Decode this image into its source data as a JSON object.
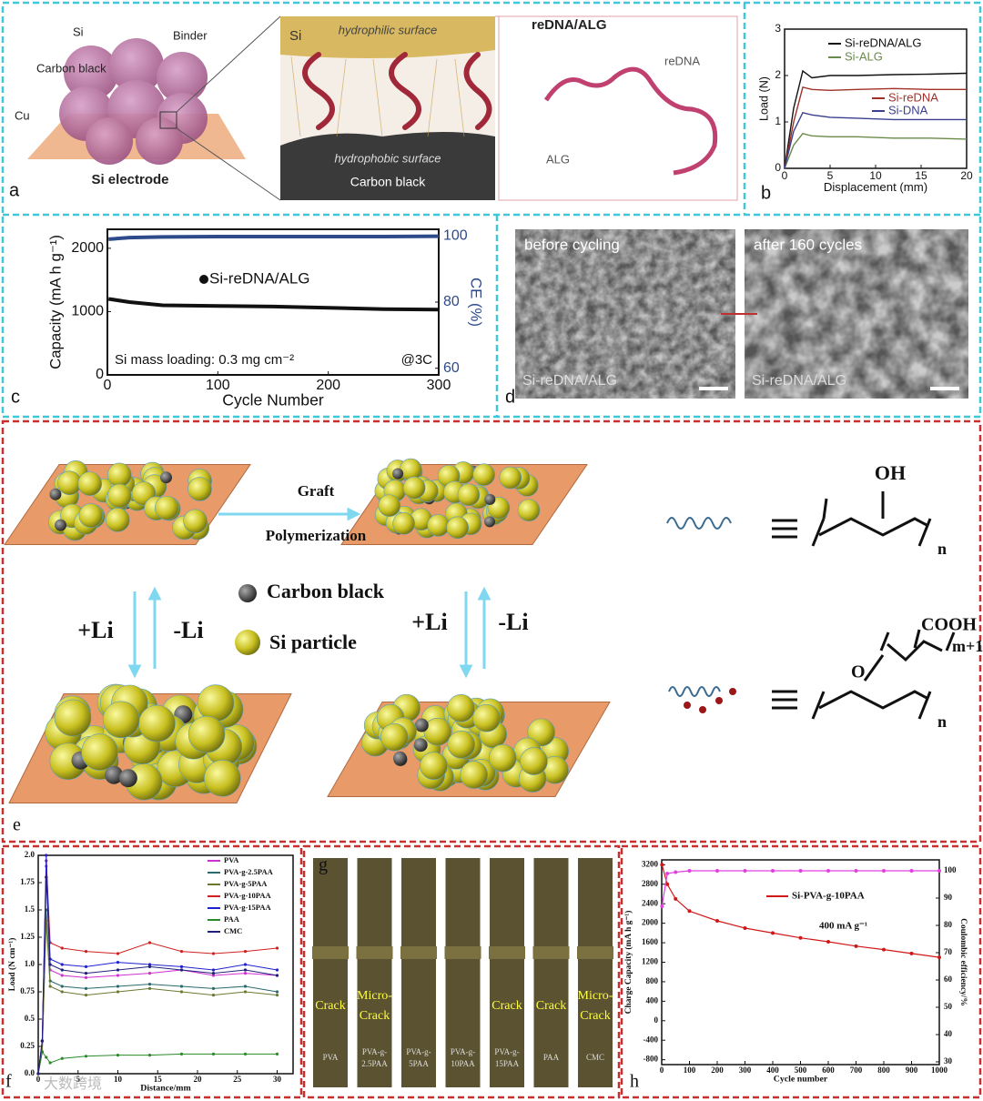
{
  "figure": {
    "panel_labels": [
      "a",
      "b",
      "c",
      "d",
      "e",
      "f",
      "g",
      "h"
    ],
    "a": {
      "labels": [
        "Si",
        "Binder",
        "Carbon black",
        "Cu",
        "Si electrode"
      ],
      "inset_labels": [
        "Si",
        "hydrophilic surface",
        "hydrophobic surface",
        "Carbon black"
      ],
      "model_title": "reDNA/ALG",
      "model_labels": [
        "reDNA",
        "ALG"
      ]
    },
    "d": {
      "titles": [
        "before cycling",
        "after 160 cycles"
      ],
      "captions": [
        "Si-reDNA/ALG",
        "Si-reDNA/ALG"
      ]
    },
    "e": {
      "arrow_labels": [
        "Graft",
        "Polymerization"
      ],
      "legend": [
        "Carbon black",
        "Si particle"
      ],
      "cycle_labels": [
        "+Li",
        "-Li",
        "+Li",
        "-Li"
      ],
      "formula1": {
        "group": "OH",
        "subscript": "n"
      },
      "formula2": {
        "group": "COOH",
        "link": "O",
        "graft_subscript": "m+1",
        "subscript": "n"
      }
    },
    "g": {
      "strips": [
        {
          "label": [
            "PVA"
          ],
          "note": [
            "Crack"
          ]
        },
        {
          "label": [
            "PVA-g-",
            "2.5PAA"
          ],
          "note": [
            "Micro-",
            "Crack"
          ]
        },
        {
          "label": [
            "PVA-g-",
            "5PAA"
          ]
        },
        {
          "label": [
            "PVA-g-",
            "10PAA"
          ]
        },
        {
          "label": [
            "PVA-g-",
            "15PAA"
          ],
          "note": [
            "Crack"
          ]
        },
        {
          "label": [
            "PAA"
          ],
          "note": [
            "Crack"
          ]
        },
        {
          "label": [
            "CMC"
          ],
          "note": [
            "Micro-",
            "Crack"
          ]
        }
      ]
    },
    "watermark": "大数跨境"
  },
  "chart_data": [
    {
      "type": "line",
      "xlabel": "Displacement (mm)",
      "ylabel": "Load (N)",
      "x": [
        0,
        1,
        2,
        3,
        5,
        8,
        12,
        16,
        20
      ],
      "xlim": [
        0,
        20
      ],
      "ylim": [
        0,
        3
      ],
      "xticks": [
        0,
        5,
        10,
        15,
        20
      ],
      "yticks": [
        0,
        1,
        2,
        3
      ],
      "series": [
        {
          "name": "Si-reDNA/ALG",
          "color": "#111111",
          "values": [
            0,
            1.3,
            2.1,
            1.95,
            2.0,
            2.0,
            2.02,
            2.03,
            2.05
          ]
        },
        {
          "name": "Si-ALG",
          "color": "#6a8a4a",
          "values": [
            0,
            0.5,
            0.75,
            0.7,
            0.68,
            0.68,
            0.65,
            0.65,
            0.63
          ]
        },
        {
          "name": "Si-reDNA",
          "color": "#a03028",
          "values": [
            0,
            1.0,
            1.75,
            1.7,
            1.68,
            1.7,
            1.72,
            1.7,
            1.7
          ]
        },
        {
          "name": "Si-DNA",
          "color": "#3a3f8f",
          "values": [
            0,
            0.8,
            1.2,
            1.15,
            1.1,
            1.08,
            1.05,
            1.05,
            1.05
          ]
        }
      ]
    },
    {
      "type": "line",
      "xlabel": "Cycle Number",
      "ylabel": "Capacity (mA h g⁻¹)",
      "y2label": "CE (%)",
      "x": [
        1,
        20,
        50,
        100,
        150,
        200,
        250,
        300
      ],
      "xlim": [
        0,
        300
      ],
      "ylim": [
        0,
        2300
      ],
      "y2lim": [
        58,
        102
      ],
      "xticks": [
        0,
        100,
        200,
        300
      ],
      "yticks": [
        0,
        1000,
        2000
      ],
      "y2ticks": [
        60,
        80,
        100
      ],
      "annotations": [
        "Si mass loading: 0.3 mg cm⁻²",
        "@3C"
      ],
      "series": [
        {
          "name": "Si-reDNA/ALG",
          "color": "#111111",
          "values": [
            1200,
            1150,
            1100,
            1090,
            1080,
            1060,
            1040,
            1030
          ]
        },
        {
          "color": "#2d4a8a",
          "axis": "y2",
          "values": [
            99,
            99.5,
            99.7,
            99.8,
            99.8,
            99.8,
            99.8,
            99.9
          ]
        }
      ]
    },
    {
      "type": "line",
      "xlabel": "Distance/mm",
      "ylabel": "Load (N cm⁻¹)",
      "x": [
        0,
        0.5,
        1,
        1.5,
        3,
        6,
        10,
        14,
        18,
        22,
        26,
        30
      ],
      "xlim": [
        0,
        32
      ],
      "ylim": [
        0,
        2
      ],
      "xticks": [
        0,
        5,
        10,
        15,
        20,
        25,
        30
      ],
      "yticks": [
        {
          "value": 0,
          "label": "0.0"
        },
        0.25,
        {
          "value": 0.5,
          "label": "0.5"
        },
        0.75,
        {
          "value": 1,
          "label": "1.0"
        },
        1.25,
        {
          "value": 1.5,
          "label": "1.5"
        },
        1.75,
        {
          "value": 2,
          "label": "2.0"
        }
      ],
      "series": [
        {
          "name": "PVA",
          "color": "#d030d0",
          "values": [
            0,
            0.3,
            1.9,
            0.95,
            0.9,
            0.88,
            0.9,
            0.92,
            0.95,
            0.9,
            0.92,
            0.9
          ]
        },
        {
          "name": "PVA-g-2.5PAA",
          "color": "#2a6a6a",
          "values": [
            0,
            0.2,
            1.5,
            0.85,
            0.8,
            0.78,
            0.8,
            0.82,
            0.8,
            0.78,
            0.8,
            0.75
          ]
        },
        {
          "name": "PVA-g-5PAA",
          "color": "#6a7a30",
          "values": [
            0,
            0.2,
            1.4,
            0.8,
            0.75,
            0.72,
            0.75,
            0.78,
            0.75,
            0.72,
            0.75,
            0.72
          ]
        },
        {
          "name": "PVA-g-10PAA",
          "color": "#d02020",
          "values": [
            0,
            0.3,
            1.95,
            1.2,
            1.15,
            1.12,
            1.1,
            1.2,
            1.12,
            1.1,
            1.12,
            1.15
          ]
        },
        {
          "name": "PVA-g-15PAA",
          "color": "#2020d0",
          "values": [
            0,
            0.3,
            2.0,
            1.05,
            1.0,
            0.98,
            1.02,
            1.0,
            0.98,
            0.95,
            1.0,
            0.95
          ]
        },
        {
          "name": "PAA",
          "color": "#2a8a2a",
          "values": [
            0,
            0.2,
            0.15,
            0.1,
            0.14,
            0.16,
            0.17,
            0.17,
            0.18,
            0.18,
            0.18,
            0.18
          ]
        },
        {
          "name": "CMC",
          "color": "#20207a",
          "values": [
            0,
            0.3,
            1.8,
            1.0,
            0.95,
            0.92,
            0.95,
            0.98,
            0.95,
            0.92,
            0.95,
            0.9
          ]
        }
      ]
    },
    {
      "type": "line",
      "xlabel": "Cycle number",
      "ylabel": "Charge Capacity  (mA h g⁻¹)",
      "y2label": "Coulombic efficiency/%",
      "x": [
        1,
        20,
        50,
        100,
        200,
        300,
        400,
        500,
        600,
        700,
        800,
        900,
        1000
      ],
      "xlim": [
        0,
        1000
      ],
      "ylim": [
        -900,
        3300
      ],
      "y2lim": [
        29,
        104
      ],
      "xticks": [
        0,
        100,
        200,
        300,
        400,
        500,
        600,
        700,
        800,
        900,
        1000
      ],
      "yticks": [
        -800,
        -400,
        0,
        400,
        800,
        1200,
        1600,
        2000,
        2400,
        2800,
        3200
      ],
      "y2ticks": [
        30,
        40,
        50,
        60,
        70,
        80,
        90,
        100
      ],
      "annotations": [
        "400 mA g⁻¹"
      ],
      "series": [
        {
          "name": "Si-PVA-g-10PAA",
          "color": "#d01818",
          "values": [
            3200,
            2800,
            2500,
            2250,
            2050,
            1900,
            1800,
            1700,
            1620,
            1530,
            1460,
            1380,
            1300
          ]
        },
        {
          "color": "#e040e0",
          "axis": "y2",
          "values": [
            87,
            99,
            99.5,
            100,
            100,
            100,
            100,
            100,
            100,
            100,
            100,
            100,
            100
          ]
        }
      ]
    }
  ]
}
